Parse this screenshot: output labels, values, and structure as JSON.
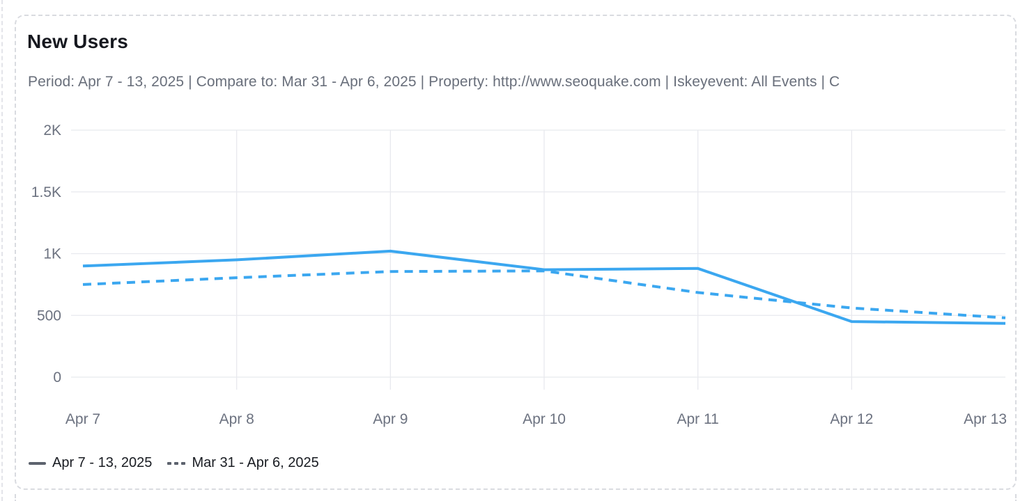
{
  "card": {
    "title": "New Users",
    "subtitle": "Period: Apr 7 - 13, 2025 | Compare to: Mar 31 - Apr 6, 2025 | Property: http://www.seoquake.com | Iskeyevent: All Events | C"
  },
  "chart_data": {
    "type": "line",
    "title": "New Users",
    "categories": [
      "Apr 7",
      "Apr 8",
      "Apr 9",
      "Apr 10",
      "Apr 11",
      "Apr 12",
      "Apr 13"
    ],
    "series": [
      {
        "name": "Apr 7 - 13, 2025",
        "style": "solid",
        "color": "#3ba7f0",
        "values": [
          900,
          950,
          1020,
          870,
          880,
          450,
          435
        ]
      },
      {
        "name": "Mar 31 - Apr 6, 2025",
        "style": "dashed",
        "color": "#3ba7f0",
        "values": [
          750,
          805,
          855,
          860,
          685,
          560,
          480
        ]
      }
    ],
    "xlabel": "",
    "ylabel": "",
    "ylim": [
      0,
      2000
    ],
    "y_ticks": [
      "0",
      "500",
      "1K",
      "1.5K",
      "2K"
    ],
    "y_tick_values": [
      0,
      500,
      1000,
      1500,
      2000
    ],
    "grid": true,
    "legend_position": "bottom"
  },
  "colors": {
    "line_blue": "#3ba7f0",
    "grid": "#e8e9ee",
    "tick_text": "#6c7280",
    "title_text": "#16181f",
    "subtitle_text": "#696f7b",
    "card_border": "#d9dbe0",
    "legend_marker": "#5d636e"
  }
}
